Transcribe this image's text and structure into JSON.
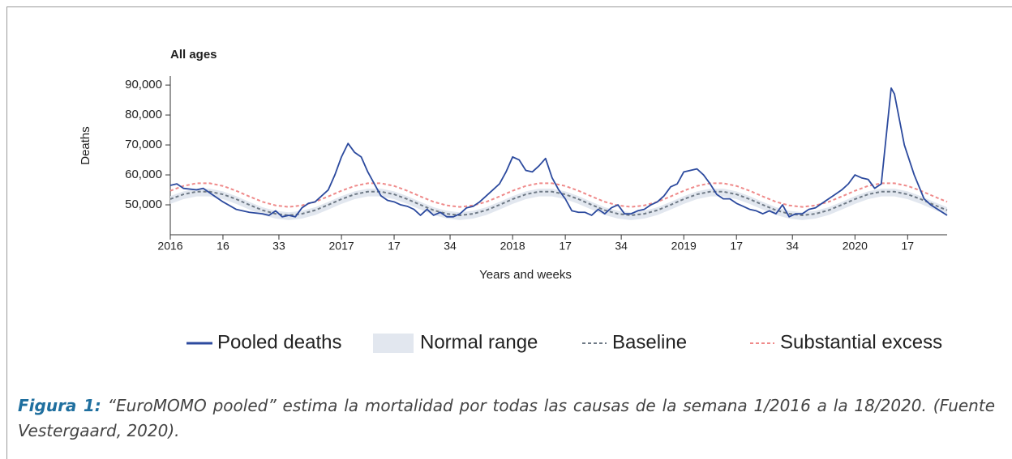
{
  "chart_data": {
    "type": "line",
    "title": "All ages",
    "ylabel": "Deaths",
    "xlabel": "Years and weeks",
    "xlim": [
      0,
      236
    ],
    "ylim": [
      40000,
      93000
    ],
    "xticks": [
      {
        "value": 0,
        "label": "2016"
      },
      16,
      33,
      {
        "value": 52,
        "label": "2017"
      },
      {
        "value": 68,
        "label": "17"
      },
      {
        "value": 85,
        "label": "34"
      },
      {
        "value": 104,
        "label": "2018"
      },
      {
        "value": 120,
        "label": "17"
      },
      {
        "value": 137,
        "label": "34"
      },
      {
        "value": 156,
        "label": "2019"
      },
      {
        "value": 172,
        "label": "17"
      },
      {
        "value": 189,
        "label": "34"
      },
      {
        "value": 208,
        "label": "2020"
      },
      {
        "value": 224,
        "label": "17"
      }
    ],
    "yticks": [
      {
        "value": 50000,
        "label": "50,000"
      },
      {
        "value": 60000,
        "label": "60,000"
      },
      {
        "value": 70000,
        "label": "70,000"
      },
      {
        "value": 80000,
        "label": "80,000"
      },
      {
        "value": 90000,
        "label": "90,000"
      }
    ],
    "series": [
      {
        "name": "Pooled deaths",
        "color": "#2c4a9e",
        "style": "solid",
        "x": [
          0,
          2,
          4,
          8,
          10,
          12,
          16,
          20,
          24,
          28,
          30,
          32,
          34,
          36,
          38,
          40,
          42,
          44,
          46,
          48,
          50,
          52,
          54,
          56,
          58,
          60,
          62,
          64,
          66,
          68,
          70,
          72,
          74,
          76,
          78,
          80,
          82,
          84,
          86,
          88,
          90,
          92,
          94,
          96,
          98,
          100,
          102,
          104,
          106,
          108,
          110,
          112,
          114,
          116,
          118,
          120,
          122,
          124,
          126,
          128,
          130,
          132,
          134,
          136,
          138,
          140,
          142,
          144,
          146,
          148,
          150,
          152,
          154,
          156,
          158,
          160,
          162,
          164,
          166,
          168,
          170,
          172,
          174,
          176,
          178,
          180,
          182,
          184,
          186,
          188,
          190,
          192,
          194,
          196,
          198,
          200,
          202,
          204,
          206,
          208,
          210,
          212,
          214,
          216,
          219,
          220,
          223,
          226,
          229,
          231,
          236
        ],
        "values": [
          56500,
          57000,
          55500,
          55000,
          55500,
          54000,
          51000,
          48500,
          47500,
          47000,
          46500,
          48000,
          46000,
          46500,
          46000,
          49000,
          50500,
          51000,
          53000,
          55000,
          60000,
          66000,
          70500,
          67500,
          66000,
          61000,
          57000,
          53000,
          51500,
          51000,
          50000,
          49500,
          48500,
          46500,
          48500,
          46500,
          47500,
          46000,
          46000,
          47000,
          49000,
          49500,
          51000,
          53000,
          55000,
          57000,
          61000,
          66000,
          65000,
          61500,
          61000,
          63000,
          65500,
          59000,
          55000,
          52000,
          48000,
          47500,
          47500,
          46500,
          48500,
          47000,
          49000,
          50000,
          47000,
          47000,
          48000,
          48500,
          50000,
          51000,
          53000,
          56000,
          57000,
          61000,
          61500,
          62000,
          60000,
          57000,
          53500,
          52000,
          52000,
          50500,
          49500,
          48500,
          48000,
          47000,
          48000,
          47000,
          50000,
          46000,
          47000,
          47000,
          48500,
          49000,
          50500,
          52000,
          53500,
          55000,
          57000,
          60000,
          59000,
          58500,
          55500,
          57000,
          89000,
          87000,
          70000,
          60000,
          52000,
          50000,
          46500
        ]
      },
      {
        "name": "Normal range",
        "color": "#e2e7ef",
        "style": "band",
        "x": [
          0,
          4,
          8,
          12,
          16,
          20,
          24,
          28,
          32,
          36,
          40,
          44,
          48,
          52,
          56,
          60,
          64,
          68,
          72,
          76,
          80,
          84,
          88,
          92,
          96,
          100,
          104,
          108,
          112,
          116,
          120,
          124,
          128,
          132,
          136,
          140,
          144,
          148,
          152,
          156,
          160,
          164,
          168,
          172,
          176,
          180,
          184,
          188,
          192,
          196,
          200,
          204,
          208,
          212,
          216,
          220,
          224,
          228,
          232,
          236
        ],
        "low": [
          50300,
          51900,
          52800,
          52800,
          51900,
          50300,
          48400,
          46600,
          45400,
          44900,
          45400,
          46600,
          48400,
          50300,
          51900,
          52800,
          52800,
          51900,
          50300,
          48400,
          46600,
          45400,
          44900,
          45400,
          46600,
          48400,
          50300,
          51900,
          52800,
          52800,
          51900,
          50300,
          48400,
          46600,
          45400,
          44900,
          45400,
          46600,
          48400,
          50300,
          51900,
          52800,
          52800,
          51900,
          50300,
          48400,
          46600,
          45400,
          44900,
          45400,
          46600,
          48400,
          50300,
          51900,
          52800,
          52800,
          51900,
          50300,
          48400,
          46600
        ],
        "high": [
          52900,
          54500,
          55400,
          55400,
          54500,
          52900,
          51000,
          49200,
          48000,
          47500,
          48000,
          49200,
          51000,
          52900,
          54500,
          55400,
          55400,
          54500,
          52900,
          51000,
          49200,
          48000,
          47500,
          48000,
          49200,
          51000,
          52900,
          54500,
          55400,
          55400,
          54500,
          52900,
          51000,
          49200,
          48000,
          47500,
          48000,
          49200,
          51000,
          52900,
          54500,
          55400,
          55400,
          54500,
          52900,
          51000,
          49200,
          48000,
          47500,
          48000,
          49200,
          51000,
          52900,
          54500,
          55400,
          55400,
          54500,
          52900,
          51000,
          49200
        ]
      },
      {
        "name": "Baseline",
        "color": "#6f7a86",
        "style": "dotted",
        "x": [
          0,
          4,
          8,
          12,
          16,
          20,
          24,
          28,
          32,
          36,
          40,
          44,
          48,
          52,
          56,
          60,
          64,
          68,
          72,
          76,
          80,
          84,
          88,
          92,
          96,
          100,
          104,
          108,
          112,
          116,
          120,
          124,
          128,
          132,
          136,
          140,
          144,
          148,
          152,
          156,
          160,
          164,
          168,
          172,
          176,
          180,
          184,
          188,
          192,
          196,
          200,
          204,
          208,
          212,
          216,
          220,
          224,
          228,
          232,
          236
        ],
        "values": [
          51900,
          53500,
          54400,
          54400,
          53500,
          51900,
          50000,
          48200,
          47000,
          46500,
          47000,
          48200,
          50000,
          51900,
          53500,
          54400,
          54400,
          53500,
          51900,
          50000,
          48200,
          47000,
          46500,
          47000,
          48200,
          50000,
          51900,
          53500,
          54400,
          54400,
          53500,
          51900,
          50000,
          48200,
          47000,
          46500,
          47000,
          48200,
          50000,
          51900,
          53500,
          54400,
          54400,
          53500,
          51900,
          50000,
          48200,
          47000,
          46500,
          47000,
          48200,
          50000,
          51900,
          53500,
          54400,
          54400,
          53500,
          51900,
          50000,
          48200
        ]
      },
      {
        "name": "Substantial excess",
        "color": "#ef8a8a",
        "style": "dotted",
        "x": [
          0,
          4,
          8,
          12,
          16,
          20,
          24,
          28,
          32,
          36,
          40,
          44,
          48,
          52,
          56,
          60,
          64,
          68,
          72,
          76,
          80,
          84,
          88,
          92,
          96,
          100,
          104,
          108,
          112,
          116,
          120,
          124,
          128,
          132,
          136,
          140,
          144,
          148,
          152,
          156,
          160,
          164,
          168,
          172,
          176,
          180,
          184,
          188,
          192,
          196,
          200,
          204,
          208,
          212,
          216,
          220,
          224,
          228,
          232,
          236
        ],
        "values": [
          54700,
          56300,
          57200,
          57200,
          56300,
          54700,
          52800,
          51000,
          49800,
          49300,
          49800,
          51000,
          52800,
          54700,
          56300,
          57200,
          57200,
          56300,
          54700,
          52800,
          51000,
          49800,
          49300,
          49800,
          51000,
          52800,
          54700,
          56300,
          57200,
          57200,
          56300,
          54700,
          52800,
          51000,
          49800,
          49300,
          49800,
          51000,
          52800,
          54700,
          56300,
          57200,
          57200,
          56300,
          54700,
          52800,
          51000,
          49800,
          49300,
          49800,
          51000,
          52800,
          54700,
          56300,
          57200,
          57200,
          56300,
          54700,
          52800,
          51000
        ]
      }
    ]
  },
  "caption": {
    "label": "Figura 1:",
    "text": "“EuroMOMO pooled” estima la mortalidad por todas las causas de la semana 1/2016 a la 18/2020. (Fuente Vestergaard, 2020)."
  }
}
